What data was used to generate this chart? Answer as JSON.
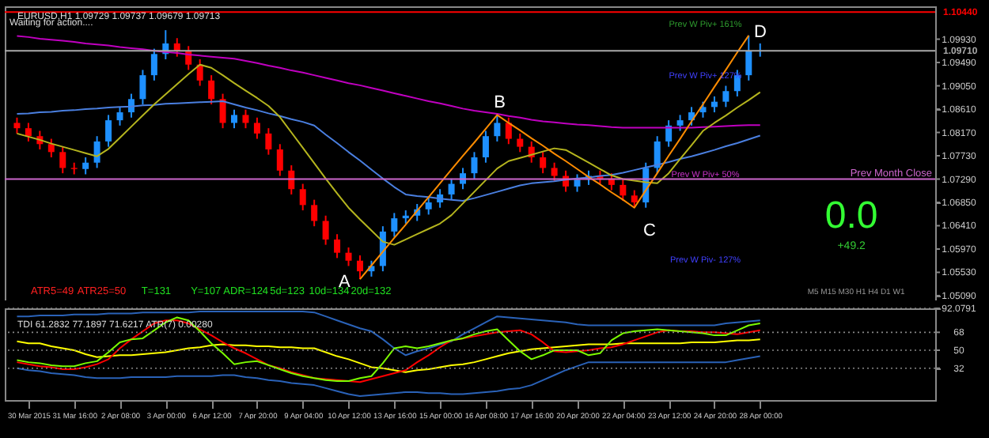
{
  "chart_data": [
    {
      "type": "candlestick",
      "title": "EURUSD,H1 1.09729 1.09737 1.09679 1.09713",
      "categories": [
        null,
        null,
        null,
        null,
        null,
        null,
        null,
        null,
        null,
        null,
        null,
        null,
        null,
        null,
        null,
        null,
        null,
        null,
        null,
        null,
        null,
        null,
        null,
        null,
        null,
        null,
        null,
        null,
        null,
        null,
        null,
        null,
        null,
        null,
        null,
        null,
        null,
        null,
        null,
        null,
        null,
        null,
        null,
        null,
        null,
        null,
        null,
        null,
        null,
        null,
        null,
        null,
        null,
        null,
        null,
        null,
        null,
        null,
        null,
        null,
        null,
        null,
        null,
        null,
        null,
        null
      ],
      "ohlc": [
        [
          1.0835,
          1.0845,
          1.0815,
          1.0825
        ],
        [
          1.0825,
          1.0835,
          1.08,
          1.081
        ],
        [
          1.081,
          1.082,
          1.0785,
          1.0795
        ],
        [
          1.0795,
          1.0805,
          1.077,
          1.078
        ],
        [
          1.078,
          1.079,
          1.074,
          1.075
        ],
        [
          1.075,
          1.076,
          1.0738,
          1.0748
        ],
        [
          1.0748,
          1.077,
          1.0738,
          1.076
        ],
        [
          1.076,
          1.081,
          1.075,
          1.08
        ],
        [
          1.08,
          1.085,
          1.079,
          1.084
        ],
        [
          1.084,
          1.0865,
          1.083,
          1.0855
        ],
        [
          1.0855,
          1.089,
          1.0845,
          1.088
        ],
        [
          1.088,
          1.0935,
          1.087,
          1.0925
        ],
        [
          1.0925,
          1.0975,
          1.0915,
          1.0965
        ],
        [
          1.0965,
          1.101,
          1.0955,
          1.0985
        ],
        [
          1.0985,
          1.0995,
          1.096,
          1.097
        ],
        [
          1.097,
          1.098,
          1.0935,
          1.0945
        ],
        [
          1.0945,
          1.0955,
          1.0905,
          1.0915
        ],
        [
          1.0915,
          1.0925,
          1.087,
          1.088
        ],
        [
          1.088,
          1.089,
          1.0825,
          1.0835
        ],
        [
          1.0835,
          1.086,
          1.0825,
          1.085
        ],
        [
          1.085,
          1.086,
          1.0825,
          1.0835
        ],
        [
          1.0835,
          1.0845,
          1.0805,
          1.0815
        ],
        [
          1.0815,
          1.0825,
          1.0775,
          1.0785
        ],
        [
          1.0785,
          1.0795,
          1.0735,
          1.0745
        ],
        [
          1.0745,
          1.0755,
          1.07,
          1.071
        ],
        [
          1.071,
          1.072,
          1.067,
          1.068
        ],
        [
          1.068,
          1.069,
          1.064,
          1.065
        ],
        [
          1.065,
          1.066,
          1.0605,
          1.0615
        ],
        [
          1.0615,
          1.0625,
          1.058,
          1.059
        ],
        [
          1.059,
          1.06,
          1.0565,
          1.0575
        ],
        [
          1.0575,
          1.0585,
          1.054,
          1.0555
        ],
        [
          1.0555,
          1.0575,
          1.0545,
          1.0565
        ],
        [
          1.0565,
          1.064,
          1.0555,
          1.063
        ],
        [
          1.063,
          1.0665,
          1.062,
          1.0655
        ],
        [
          1.0655,
          1.067,
          1.0645,
          1.066
        ],
        [
          1.066,
          1.0682,
          1.065,
          1.0672
        ],
        [
          1.0672,
          1.0695,
          1.0662,
          1.0685
        ],
        [
          1.0685,
          1.071,
          1.0675,
          1.07
        ],
        [
          1.07,
          1.073,
          1.069,
          1.072
        ],
        [
          1.072,
          1.075,
          1.071,
          1.074
        ],
        [
          1.074,
          1.078,
          1.073,
          1.077
        ],
        [
          1.077,
          1.082,
          1.076,
          1.081
        ],
        [
          1.081,
          1.085,
          1.08,
          1.0835
        ],
        [
          1.0835,
          1.0845,
          1.0795,
          1.0805
        ],
        [
          1.0805,
          1.0815,
          1.078,
          1.079
        ],
        [
          1.079,
          1.08,
          1.076,
          1.077
        ],
        [
          1.077,
          1.078,
          1.074,
          1.075
        ],
        [
          1.075,
          1.076,
          1.0725,
          1.0735
        ],
        [
          1.0735,
          1.0745,
          1.0705,
          1.0715
        ],
        [
          1.0715,
          1.0738,
          1.0705,
          1.0728
        ],
        [
          1.0728,
          1.0745,
          1.0718,
          1.0735
        ],
        [
          1.0735,
          1.0745,
          1.072,
          1.073
        ],
        [
          1.073,
          1.074,
          1.0708,
          1.0718
        ],
        [
          1.0718,
          1.0728,
          1.0688,
          1.0698
        ],
        [
          1.0698,
          1.0708,
          1.0675,
          1.0685
        ],
        [
          1.0685,
          1.076,
          1.0675,
          1.075
        ],
        [
          1.075,
          1.081,
          1.074,
          1.08
        ],
        [
          1.08,
          1.084,
          1.079,
          1.083
        ],
        [
          1.083,
          1.085,
          1.082,
          1.084
        ],
        [
          1.084,
          1.0865,
          1.083,
          1.0855
        ],
        [
          1.0855,
          1.0875,
          1.0845,
          1.0865
        ],
        [
          1.0865,
          1.0885,
          1.0855,
          1.0875
        ],
        [
          1.0875,
          1.0905,
          1.0865,
          1.0895
        ],
        [
          1.0895,
          1.0935,
          1.0885,
          1.0925
        ],
        [
          1.0925,
          1.1,
          1.0915,
          1.097
        ],
        [
          1.097,
          1.0985,
          1.096,
          1.0971
        ]
      ],
      "colors": [
        "#ff0000",
        "#ff0000",
        "#ff0000",
        "#ff0000",
        "#ff0000",
        "#ff0000",
        "#1e90ff",
        "#1e90ff",
        "#1e90ff",
        "#1e90ff",
        "#1e90ff",
        "#1e90ff",
        "#1e90ff",
        "#1e90ff",
        "#ff0000",
        "#ff0000",
        "#ff0000",
        "#ff0000",
        "#ff0000",
        "#1e90ff",
        "#ff0000",
        "#ff0000",
        "#ff0000",
        "#ff0000",
        "#ff0000",
        "#ff0000",
        "#ff0000",
        "#ff0000",
        "#ff0000",
        "#ff0000",
        "#ff0000",
        "#1e90ff",
        "#1e90ff",
        "#1e90ff",
        "#1e90ff",
        "#1e90ff",
        "#1e90ff",
        "#1e90ff",
        "#1e90ff",
        "#1e90ff",
        "#1e90ff",
        "#1e90ff",
        "#1e90ff",
        "#ff0000",
        "#ff0000",
        "#ff0000",
        "#ff0000",
        "#ff0000",
        "#ff0000",
        "#1e90ff",
        "#1e90ff",
        "#ff0000",
        "#ff0000",
        "#ff0000",
        "#ff0000",
        "#1e90ff",
        "#1e90ff",
        "#1e90ff",
        "#1e90ff",
        "#1e90ff",
        "#1e90ff",
        "#1e90ff",
        "#1e90ff",
        "#1e90ff",
        "#1e90ff",
        "#1e90ff"
      ],
      "series": [
        {
          "type": "line",
          "color": "#4a7fe0",
          "values": [
            1.0852,
            1.0853,
            1.0855,
            1.0856,
            1.0858,
            1.0859,
            1.0861,
            1.0862,
            1.0864,
            1.0865,
            1.0866,
            1.0868,
            1.0869,
            1.0871,
            1.0872,
            1.0873,
            1.0874,
            1.0875,
            1.0876,
            1.087,
            1.0864,
            1.0859,
            1.0853,
            1.0848,
            1.0842,
            1.0837,
            1.083,
            1.0813,
            1.0797,
            1.078,
            1.0764,
            1.0747,
            1.073,
            1.0714,
            1.07,
            1.0697,
            1.0695,
            1.0692,
            1.069,
            1.0688,
            1.0693,
            1.0699,
            1.0705,
            1.0711,
            1.0717,
            1.0721,
            1.0723,
            1.0725,
            1.0728,
            1.073,
            1.0732,
            1.0735,
            1.0737,
            1.0741,
            1.0746,
            1.0751,
            1.0756,
            1.0761,
            1.0767,
            1.0772,
            1.0778,
            1.0784,
            1.0791,
            1.0797,
            1.0804,
            1.0811
          ]
        },
        {
          "type": "line",
          "color": "#c000c0",
          "values": [
            1.0999,
            1.0997,
            1.0994,
            1.0992,
            1.099,
            1.0988,
            1.0985,
            1.0983,
            1.0981,
            1.0978,
            1.0976,
            1.0974,
            1.0971,
            1.0969,
            1.0967,
            1.0964,
            1.0962,
            1.096,
            1.0958,
            1.0956,
            1.0952,
            1.0948,
            1.0943,
            1.0939,
            1.0934,
            1.093,
            1.0925,
            1.092,
            1.0915,
            1.091,
            1.0906,
            1.0901,
            1.0896,
            1.0891,
            1.0886,
            1.0881,
            1.0876,
            1.0872,
            1.0867,
            1.0862,
            1.0858,
            1.0855,
            1.0852,
            1.0848,
            1.0845,
            1.0841,
            1.0838,
            1.0836,
            1.0834,
            1.0832,
            1.0831,
            1.0829,
            1.0827,
            1.0826,
            1.0826,
            1.0826,
            1.0826,
            1.0826,
            1.0826,
            1.0826,
            1.0827,
            1.0828,
            1.0829,
            1.083,
            1.0831,
            1.0831
          ]
        },
        {
          "type": "line",
          "color": "#b5b51e",
          "values": [
            1.0815,
            1.0809,
            1.0803,
            1.0796,
            1.079,
            1.0784,
            1.0778,
            1.0772,
            1.0786,
            1.0807,
            1.0828,
            1.0849,
            1.087,
            1.0889,
            1.0908,
            1.0927,
            1.0945,
            1.0939,
            1.0925,
            1.091,
            1.0896,
            1.0882,
            1.0867,
            1.0846,
            1.0817,
            1.0788,
            1.0759,
            1.073,
            1.0702,
            1.0675,
            1.0653,
            1.0632,
            1.0611,
            1.0605,
            1.0615,
            1.0625,
            1.0635,
            1.0645,
            1.0661,
            1.0683,
            1.0705,
            1.0727,
            1.0749,
            1.0763,
            1.0769,
            1.0775,
            1.0781,
            1.0787,
            1.0784,
            1.0772,
            1.076,
            1.0748,
            1.0736,
            1.0729,
            1.0726,
            1.0723,
            1.0721,
            1.074,
            1.0767,
            1.0793,
            1.082,
            1.0835,
            1.0849,
            1.0864,
            1.0878,
            1.0893
          ]
        },
        {
          "type": "line",
          "color": "#ff8c00",
          "values": [
            null,
            null,
            null,
            null,
            null,
            null,
            null,
            null,
            null,
            null,
            null,
            null,
            null,
            null,
            null,
            null,
            null,
            null,
            null,
            null,
            null,
            null,
            null,
            null,
            null,
            null,
            null,
            null,
            null,
            null,
            1.054,
            1.0566,
            1.0592,
            1.0618,
            1.0643,
            1.0669,
            1.0695,
            1.0721,
            1.0747,
            1.0773,
            1.0798,
            1.0824,
            1.085,
            1.0835,
            1.0821,
            1.0806,
            1.0792,
            1.0777,
            1.0763,
            1.0748,
            1.0733,
            1.0719,
            1.0704,
            1.069,
            1.0675,
            1.0708,
            1.074,
            1.0773,
            1.0805,
            1.0838,
            1.087,
            1.0903,
            1.0935,
            1.0968,
            1.1,
            null
          ]
        }
      ],
      "ref_lines": [
        {
          "axis": "y",
          "value": 1.1044,
          "label": "1.10440",
          "color": "#ff0000"
        },
        {
          "axis": "y",
          "value": 1.0971,
          "label": "1.09710",
          "color": "#aaaaaa"
        },
        {
          "axis": "y",
          "value": 1.0729,
          "label": "Prev Month Close",
          "color": "#cc66cc"
        }
      ],
      "annotations": [
        "Waiting for action....",
        "ATR5=49",
        "ATR25=50",
        "T=131",
        "Y=107",
        "ADR=124",
        "5d=123",
        "10d=134",
        "20d=132",
        "0.0",
        "+49.2",
        "M5 M15 M30 H1 H4 D1 W1",
        "Prev W Piv+ 161%",
        "Prev W Piv+ 127%",
        "Prev W Piv+ 50%",
        "Prev W Piv- 127%",
        "A",
        "B",
        "C",
        "D"
      ],
      "ylim": [
        1.05,
        1.1055
      ],
      "yticks": [
        {
          "value": 1.0993,
          "label": "1.09930"
        },
        {
          "value": 1.0949,
          "label": "1.09490"
        },
        {
          "value": 1.0905,
          "label": "1.09050"
        },
        {
          "value": 1.0861,
          "label": "1.08610"
        },
        {
          "value": 1.0817,
          "label": "1.08170"
        },
        {
          "value": 1.0773,
          "label": "1.07730"
        },
        {
          "value": 1.0729,
          "label": "1.07290"
        },
        {
          "value": 1.0685,
          "label": "1.06850"
        },
        {
          "value": 1.0641,
          "label": "1.06410"
        },
        {
          "value": 1.0597,
          "label": "1.05970"
        },
        {
          "value": 1.0553,
          "label": "1.05530"
        },
        {
          "value": 1.0509,
          "label": "1.05090"
        }
      ],
      "tick_labels": "y"
    },
    {
      "type": "line",
      "title": "TDI 61.2832 77.1897 71.6217 ATR(7) 0.00280",
      "categories": [
        null,
        "30 Mar 2015",
        null,
        null,
        null,
        "31 Mar 16:00",
        null,
        null,
        null,
        "2 Apr 08:00",
        null,
        null,
        null,
        "3 Apr 00:00",
        null,
        null,
        null,
        "6 Apr 12:00",
        null,
        null,
        null,
        "7 Apr 20:00",
        null,
        null,
        null,
        "9 Apr 04:00",
        null,
        null,
        null,
        "10 Apr 12:00",
        null,
        null,
        null,
        "13 Apr 16:00",
        null,
        null,
        null,
        "15 Apr 00:00",
        null,
        null,
        null,
        "16 Apr 08:00",
        null,
        null,
        null,
        "17 Apr 16:00",
        null,
        null,
        null,
        "20 Apr 20:00",
        null,
        null,
        null,
        "22 Apr 04:00",
        null,
        null,
        null,
        "23 Apr 12:00",
        null,
        null,
        null,
        "24 Apr 20:00",
        null,
        null,
        null,
        "28 Apr 00:00"
      ],
      "series": [
        {
          "color": "#2a62b8",
          "values": [
            84,
            84,
            85,
            85,
            85,
            86,
            86,
            86,
            87,
            87,
            87,
            88,
            88,
            88,
            88,
            88,
            89,
            89,
            89,
            89,
            89,
            89,
            89,
            89,
            89,
            89,
            88,
            84,
            80,
            76,
            72,
            69,
            61,
            52,
            45,
            49,
            52,
            56,
            59,
            66,
            72,
            78,
            84,
            83,
            82,
            81,
            80,
            79,
            78,
            76,
            75,
            75,
            75,
            75,
            75,
            75,
            75,
            75,
            75,
            75,
            75,
            75,
            77,
            78,
            79,
            80
          ]
        },
        {
          "color": "#2a62b8",
          "values": [
            32,
            30,
            29,
            27,
            26,
            25,
            23,
            22,
            22,
            22,
            23,
            23,
            23,
            23,
            24,
            24,
            24,
            24,
            25,
            25,
            23,
            22,
            20,
            19,
            17,
            16,
            15,
            12,
            9,
            6,
            4,
            5,
            6,
            7,
            8,
            8,
            7,
            7,
            6,
            6,
            7,
            8,
            9,
            11,
            12,
            15,
            20,
            25,
            30,
            34,
            38,
            38,
            38,
            38,
            38,
            38,
            38,
            38,
            38,
            38,
            38,
            38,
            38,
            40,
            42,
            44
          ]
        },
        {
          "color": "#ffff00",
          "values": [
            59,
            57,
            57,
            54,
            52,
            50,
            46,
            43,
            44,
            45,
            45,
            46,
            47,
            48,
            50,
            52,
            53,
            55,
            56,
            55,
            55,
            54,
            54,
            53,
            53,
            52,
            52,
            48,
            44,
            41,
            37,
            33,
            32,
            30,
            28,
            30,
            31,
            33,
            35,
            36,
            38,
            41,
            44,
            47,
            49,
            51,
            52,
            53,
            54,
            55,
            56,
            56,
            56,
            57,
            57,
            57,
            57,
            57,
            57,
            58,
            58,
            58,
            59,
            60,
            60,
            61
          ]
        },
        {
          "color": "#ff0000",
          "values": [
            38,
            36,
            34,
            33,
            31,
            31,
            33,
            36,
            41,
            52,
            61,
            69,
            77,
            80,
            80,
            77,
            71,
            65,
            58,
            52,
            47,
            41,
            35,
            32,
            28,
            25,
            22,
            21,
            20,
            19,
            18,
            21,
            24,
            27,
            30,
            38,
            45,
            53,
            60,
            62,
            64,
            66,
            68,
            69,
            70,
            66,
            58,
            49,
            48,
            49,
            50,
            52,
            53,
            56,
            60,
            64,
            68,
            70,
            69,
            69,
            68,
            68,
            67,
            66,
            68,
            70
          ]
        },
        {
          "color": "#7cfc00",
          "values": [
            40,
            38,
            37,
            35,
            34,
            34,
            37,
            39,
            48,
            58,
            61,
            62,
            70,
            78,
            83,
            80,
            69,
            57,
            47,
            36,
            38,
            39,
            35,
            31,
            27,
            24,
            22,
            20,
            19,
            19,
            22,
            24,
            37,
            52,
            54,
            52,
            54,
            57,
            60,
            62,
            66,
            69,
            71,
            60,
            49,
            41,
            45,
            50,
            50,
            50,
            45,
            47,
            60,
            67,
            69,
            70,
            71,
            70,
            69,
            68,
            67,
            65,
            65,
            70,
            75,
            77
          ]
        }
      ],
      "ylim": [
        0,
        92.0791
      ],
      "yticks": [
        {
          "value": 92.0791,
          "label": "92.0791"
        },
        {
          "value": 68,
          "label": "68"
        },
        {
          "value": 50,
          "label": "50"
        },
        {
          "value": 32,
          "label": "32"
        }
      ],
      "grid": "y"
    }
  ]
}
